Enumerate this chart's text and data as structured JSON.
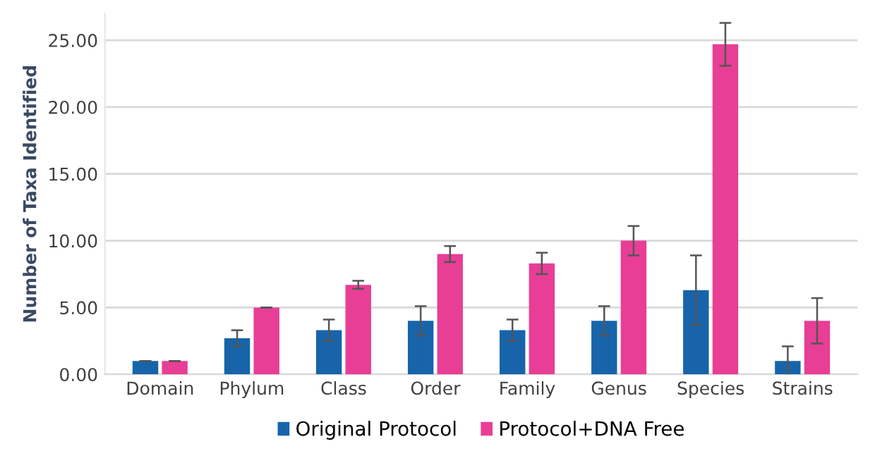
{
  "chart_data": {
    "type": "bar",
    "ylabel": "Number of Taxa Identified",
    "categories": [
      "Domain",
      "Phylum",
      "Class",
      "Order",
      "Family",
      "Genus",
      "Species",
      "Strains"
    ],
    "series": [
      {
        "name": "Original Protocol",
        "color": "#1764ab",
        "values": [
          1,
          2.7,
          3.3,
          4,
          3.3,
          4,
          6.3,
          1
        ],
        "errors": [
          null,
          0.6,
          0.8,
          1.1,
          0.8,
          1.1,
          2.6,
          1.1
        ]
      },
      {
        "name": "Protocol+DNA Free",
        "color": "#e83e96",
        "values": [
          1,
          5,
          6.7,
          9,
          8.3,
          10,
          24.7,
          4
        ],
        "errors": [
          null,
          null,
          0.3,
          0.6,
          0.8,
          1.1,
          1.6,
          1.7
        ]
      }
    ],
    "ylim": [
      0,
      27
    ],
    "yticks": [
      {
        "value": 0,
        "label": "0.00"
      },
      {
        "value": 5,
        "label": "5.00"
      },
      {
        "value": 10,
        "label": "10.00"
      },
      {
        "value": 15,
        "label": "15.00"
      },
      {
        "value": 20,
        "label": "20.00"
      },
      {
        "value": 25,
        "label": "25.00"
      }
    ],
    "grid": "y",
    "legend": "bottom"
  }
}
